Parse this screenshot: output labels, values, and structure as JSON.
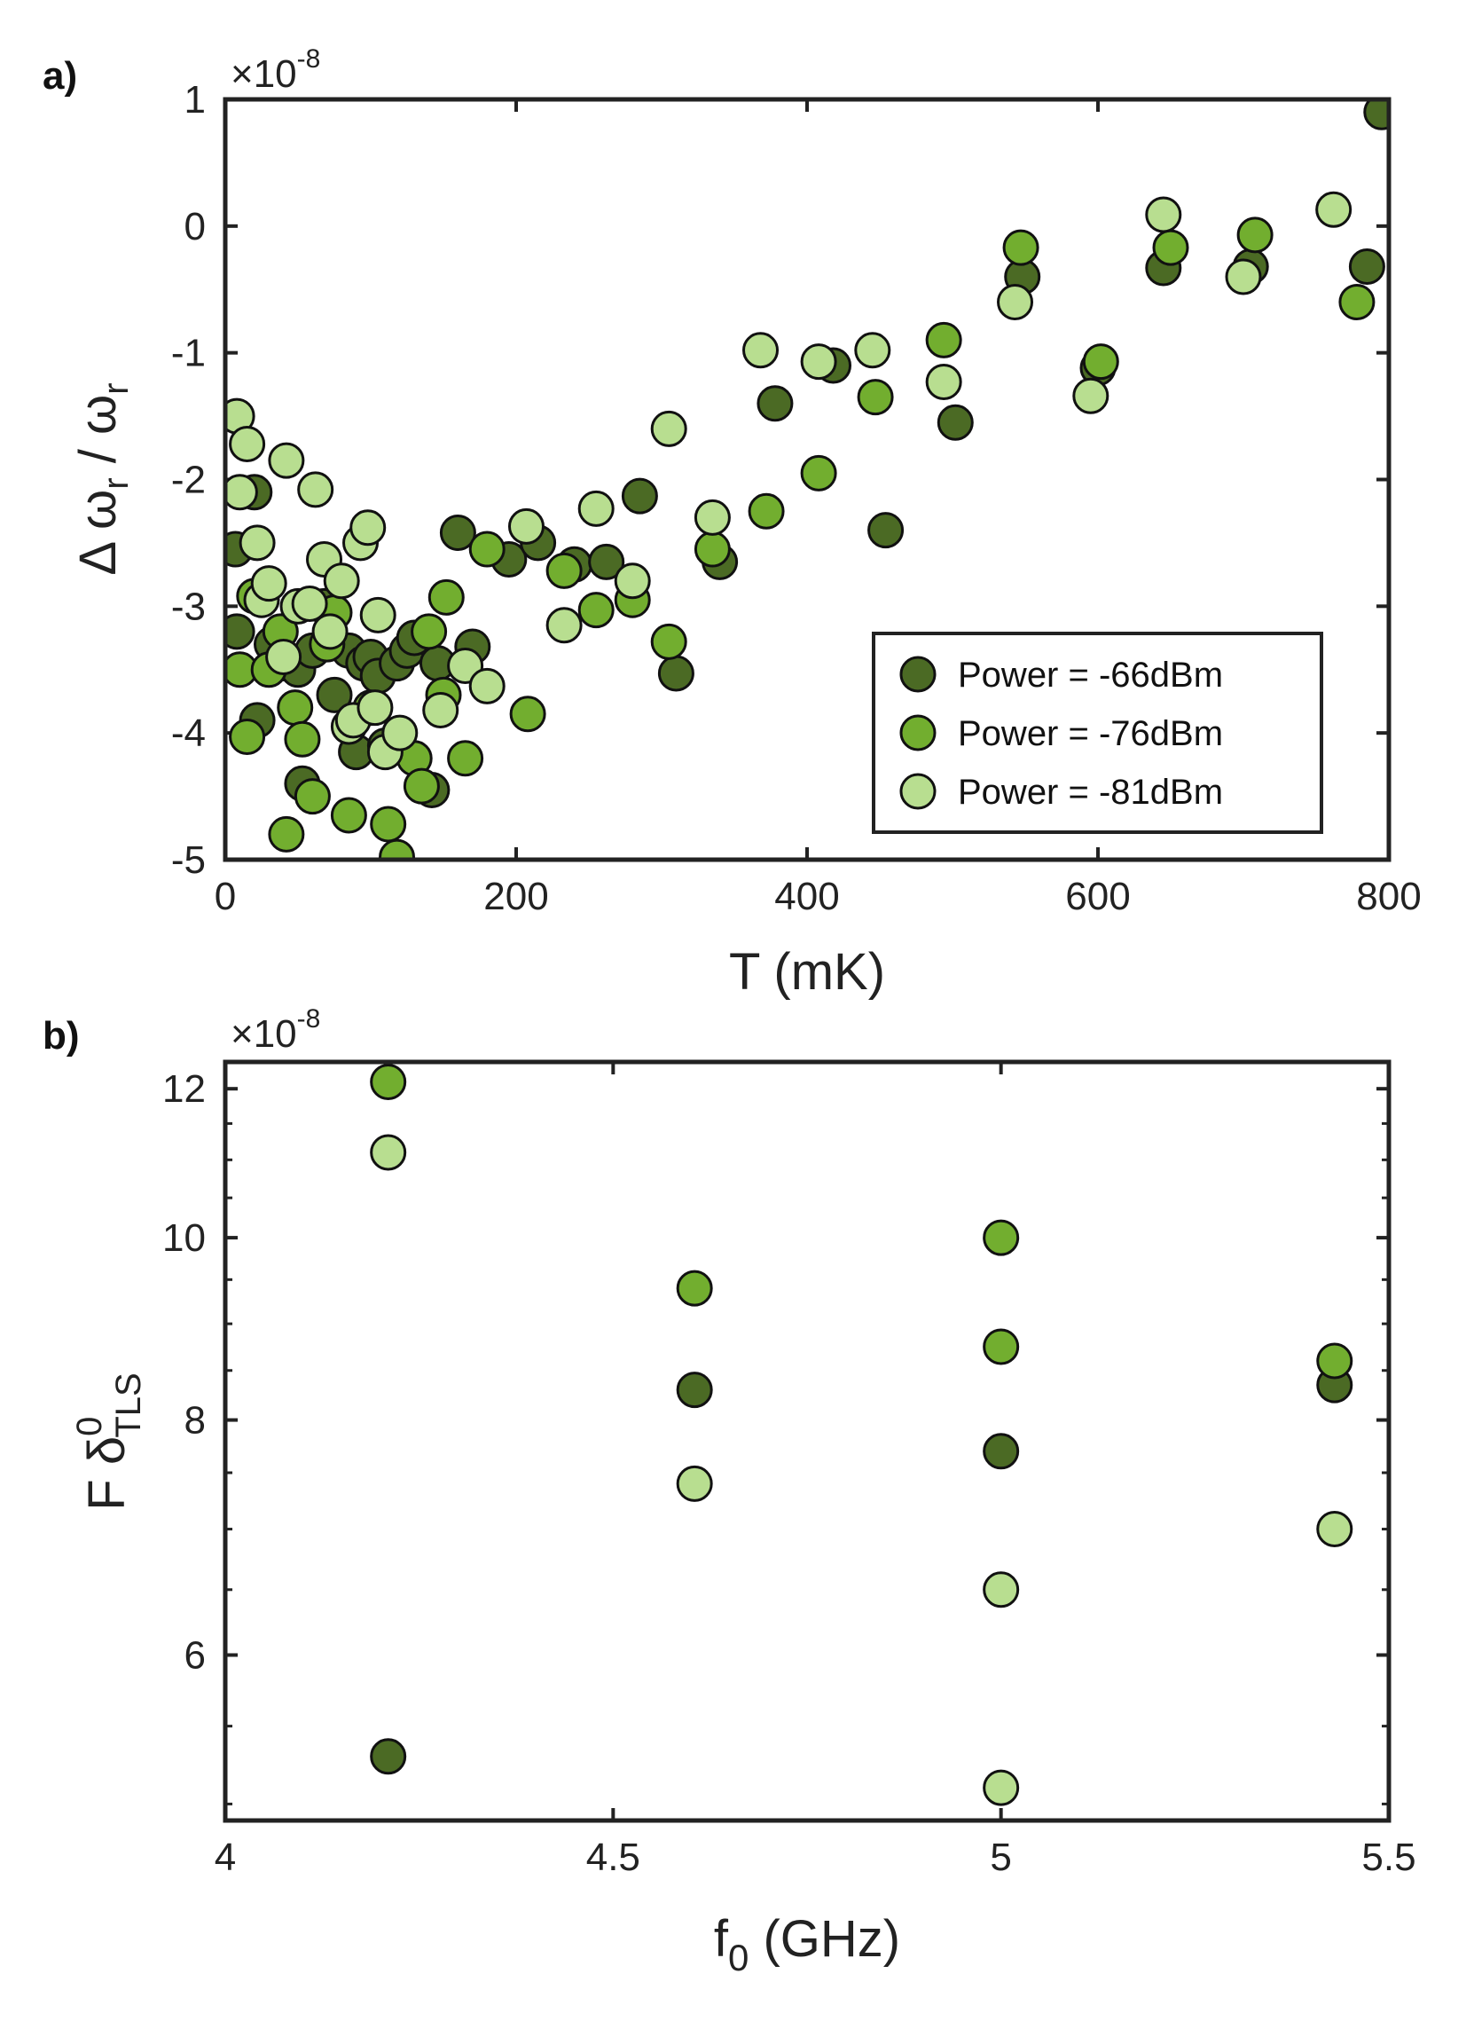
{
  "colors": {
    "dark": "#4b6a24",
    "mid": "#72ae2f",
    "light": "#b8de90",
    "axis": "#222222"
  },
  "chart_data": [
    {
      "panel": "a)",
      "type": "scatter",
      "xlabel": "T (mK)",
      "ylabel": "Δ ω_r / ω_r",
      "ylabel_parts": {
        "delta": "Δ",
        "omega": "ω",
        "sub": "r",
        "slash": "/"
      },
      "y_exponent_base": "×10",
      "y_exponent": "-8",
      "xlim": [
        0,
        800
      ],
      "ylim": [
        -5,
        1
      ],
      "xticks": [
        0,
        200,
        400,
        600,
        800
      ],
      "xtick_labels": [
        "0",
        "200",
        "400",
        "600",
        "800"
      ],
      "yticks": [
        1,
        0,
        -1,
        -2,
        -3,
        -4,
        -5
      ],
      "ytick_labels": [
        "1",
        "0",
        "-1",
        "-2",
        "-3",
        "-4",
        "-5"
      ],
      "legend_position": "bottom-right",
      "series": [
        {
          "name": "Power = -66dBm",
          "color_key": "dark",
          "points": [
            [
              7,
              -2.55
            ],
            [
              8,
              -3.2
            ],
            [
              20,
              -2.1
            ],
            [
              22,
              -3.9
            ],
            [
              32,
              -3.3
            ],
            [
              42,
              -3.45
            ],
            [
              50,
              -3.5
            ],
            [
              53,
              -4.4
            ],
            [
              60,
              -3.35
            ],
            [
              68,
              -3.0
            ],
            [
              75,
              -3.7
            ],
            [
              85,
              -3.35
            ],
            [
              90,
              -4.15
            ],
            [
              95,
              -3.45
            ],
            [
              100,
              -3.4
            ],
            [
              105,
              -3.55
            ],
            [
              110,
              -4.1
            ],
            [
              118,
              -3.45
            ],
            [
              125,
              -3.35
            ],
            [
              130,
              -3.25
            ],
            [
              142,
              -4.45
            ],
            [
              146,
              -3.45
            ],
            [
              160,
              -2.42
            ],
            [
              170,
              -3.32
            ],
            [
              195,
              -2.63
            ],
            [
              215,
              -2.5
            ],
            [
              240,
              -2.67
            ],
            [
              262,
              -2.65
            ],
            [
              285,
              -2.13
            ],
            [
              310,
              -3.53
            ],
            [
              340,
              -2.65
            ],
            [
              378,
              -1.4
            ],
            [
              418,
              -1.1
            ],
            [
              454,
              -2.4
            ],
            [
              502,
              -1.55
            ],
            [
              548,
              -0.4
            ],
            [
              600,
              -1.12
            ],
            [
              645,
              -0.33
            ],
            [
              705,
              -0.32
            ],
            [
              785,
              -0.32
            ],
            [
              795,
              0.9
            ]
          ]
        },
        {
          "name": "Power = -76dBm",
          "color_key": "mid",
          "points": [
            [
              10,
              -3.5
            ],
            [
              15,
              -4.03
            ],
            [
              20,
              -2.92
            ],
            [
              30,
              -3.5
            ],
            [
              38,
              -3.2
            ],
            [
              42,
              -4.8
            ],
            [
              48,
              -3.8
            ],
            [
              53,
              -4.05
            ],
            [
              60,
              -4.5
            ],
            [
              70,
              -3.3
            ],
            [
              75,
              -3.05
            ],
            [
              85,
              -4.65
            ],
            [
              100,
              -3.8
            ],
            [
              112,
              -4.72
            ],
            [
              118,
              -4.98
            ],
            [
              130,
              -4.2
            ],
            [
              135,
              -4.42
            ],
            [
              140,
              -3.2
            ],
            [
              150,
              -3.7
            ],
            [
              152,
              -2.93
            ],
            [
              165,
              -4.2
            ],
            [
              180,
              -2.55
            ],
            [
              208,
              -3.85
            ],
            [
              233,
              -2.72
            ],
            [
              255,
              -3.03
            ],
            [
              280,
              -2.95
            ],
            [
              305,
              -3.28
            ],
            [
              335,
              -2.55
            ],
            [
              372,
              -2.25
            ],
            [
              408,
              -1.95
            ],
            [
              447,
              -1.35
            ],
            [
              494,
              -0.9
            ],
            [
              547,
              -0.17
            ],
            [
              602,
              -1.07
            ],
            [
              650,
              -0.17
            ],
            [
              708,
              -0.07
            ],
            [
              778,
              -0.6
            ]
          ]
        },
        {
          "name": "Power = -81dBm",
          "color_key": "light",
          "points": [
            [
              8,
              -1.5
            ],
            [
              10,
              -2.1
            ],
            [
              15,
              -1.72
            ],
            [
              22,
              -2.5
            ],
            [
              25,
              -2.95
            ],
            [
              30,
              -2.82
            ],
            [
              40,
              -3.4
            ],
            [
              42,
              -1.85
            ],
            [
              50,
              -3.0
            ],
            [
              58,
              -2.98
            ],
            [
              62,
              -2.08
            ],
            [
              68,
              -2.63
            ],
            [
              72,
              -3.2
            ],
            [
              80,
              -2.8
            ],
            [
              85,
              -3.95
            ],
            [
              88,
              -3.9
            ],
            [
              93,
              -2.5
            ],
            [
              98,
              -2.38
            ],
            [
              103,
              -3.8
            ],
            [
              105,
              -3.07
            ],
            [
              110,
              -4.15
            ],
            [
              120,
              -4.0
            ],
            [
              148,
              -3.82
            ],
            [
              165,
              -3.47
            ],
            [
              180,
              -3.63
            ],
            [
              207,
              -2.37
            ],
            [
              233,
              -3.15
            ],
            [
              255,
              -2.23
            ],
            [
              280,
              -2.8
            ],
            [
              305,
              -1.6
            ],
            [
              335,
              -2.3
            ],
            [
              368,
              -0.98
            ],
            [
              408,
              -1.07
            ],
            [
              445,
              -0.98
            ],
            [
              494,
              -1.23
            ],
            [
              543,
              -0.6
            ],
            [
              595,
              -1.34
            ],
            [
              645,
              0.09
            ],
            [
              700,
              -0.4
            ],
            [
              762,
              0.13
            ]
          ]
        }
      ]
    },
    {
      "panel": "b)",
      "type": "scatter",
      "xlabel": "f_0 (GHz)",
      "xlabel_parts": {
        "main": "f",
        "sub": "0",
        "unit": "(GHz)"
      },
      "ylabel": "F δ^0_TLS",
      "ylabel_parts": {
        "main": "F",
        "delta": "δ",
        "sup": "0",
        "sub": "TLS"
      },
      "y_exponent_base": "×10",
      "y_exponent": "-8",
      "xlim": [
        4,
        5.5
      ],
      "ylim": [
        4.9,
        12.4
      ],
      "yscale": "log",
      "xticks": [
        4,
        4.5,
        5,
        5.5
      ],
      "xtick_labels": [
        "4",
        "4.5",
        "5",
        "5.5"
      ],
      "yticks": [
        6,
        8,
        10,
        12
      ],
      "ytick_labels": [
        "6",
        "8",
        "10",
        "12"
      ],
      "series": [
        {
          "name": "Power = -66dBm",
          "color_key": "dark",
          "points": [
            [
              4.21,
              5.3
            ],
            [
              4.605,
              8.3
            ],
            [
              5.0,
              7.7
            ],
            [
              5.43,
              8.35
            ]
          ]
        },
        {
          "name": "Power = -76dBm",
          "color_key": "mid",
          "points": [
            [
              4.21,
              12.1
            ],
            [
              4.605,
              9.4
            ],
            [
              5.0,
              10.0
            ],
            [
              5.0,
              8.75
            ],
            [
              5.43,
              8.6
            ]
          ]
        },
        {
          "name": "Power = -81dBm",
          "color_key": "light",
          "points": [
            [
              4.21,
              11.1
            ],
            [
              4.605,
              7.4
            ],
            [
              5.0,
              6.5
            ],
            [
              5.0,
              5.1
            ],
            [
              5.43,
              7.0
            ]
          ]
        }
      ]
    }
  ]
}
